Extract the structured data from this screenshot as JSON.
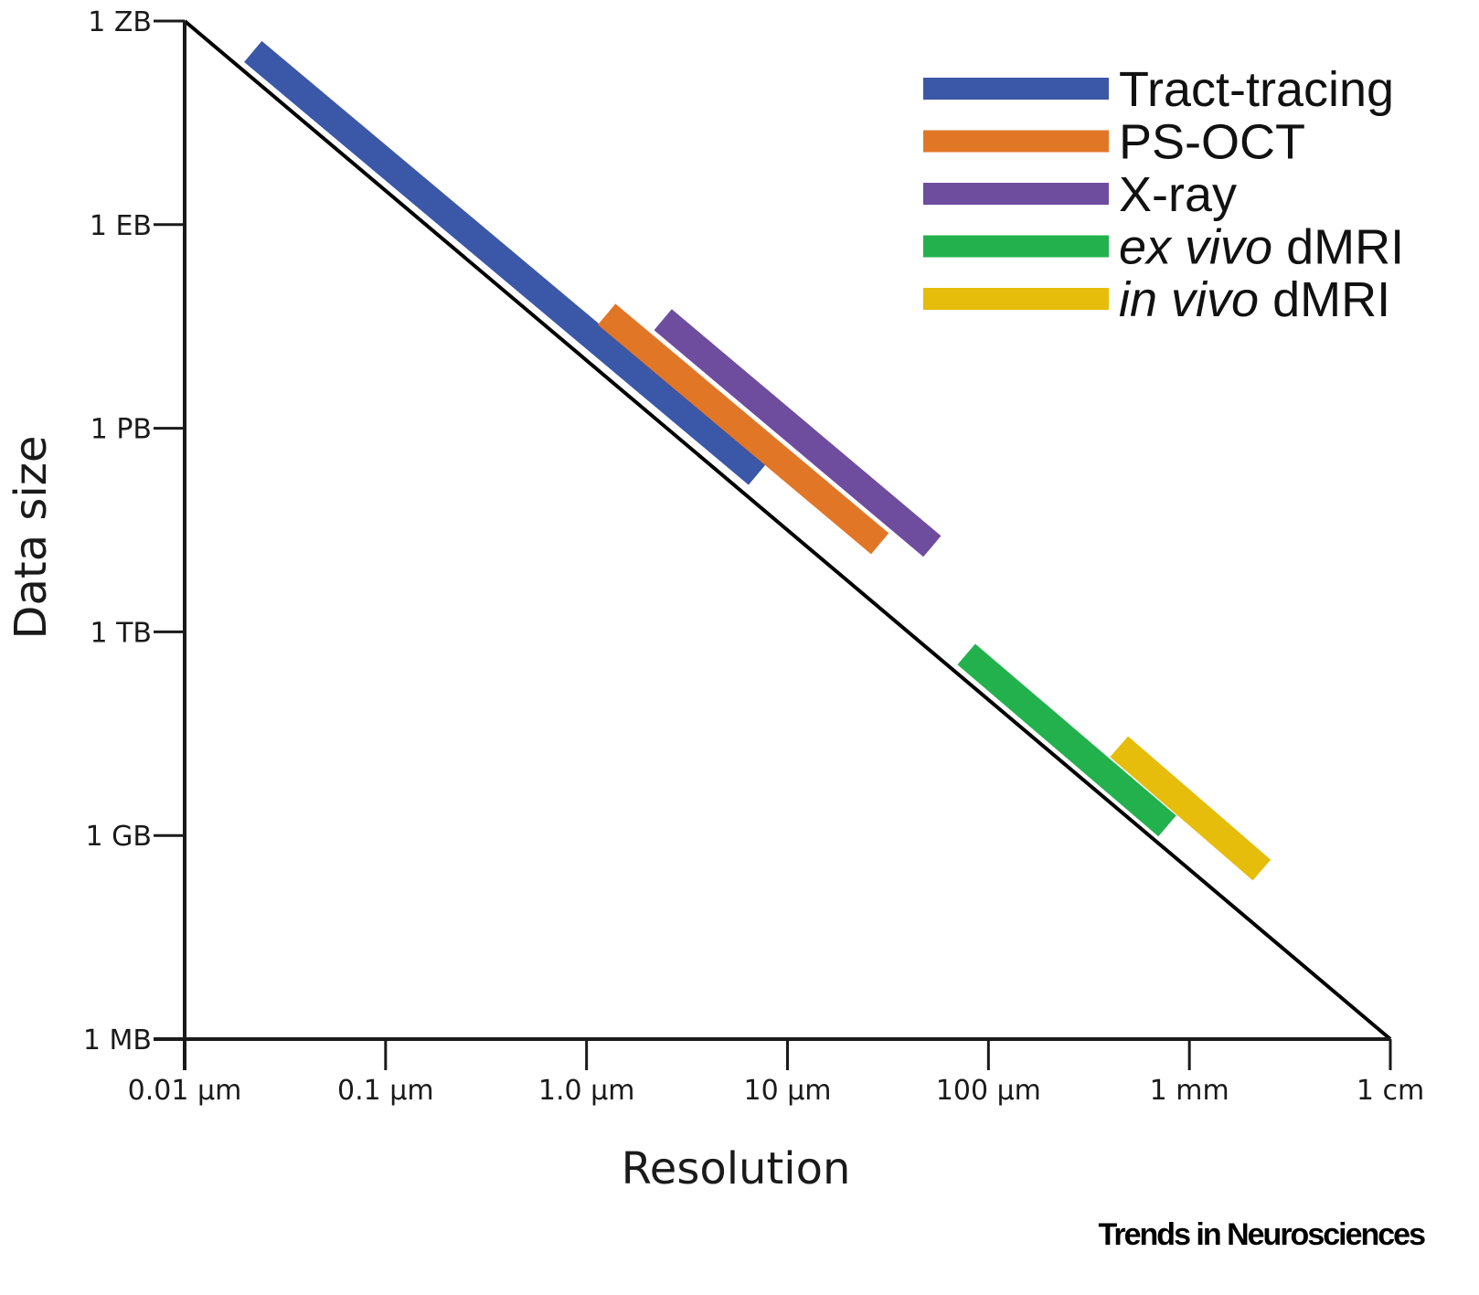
{
  "chart_data": {
    "type": "line",
    "title": "",
    "xlabel": "Resolution",
    "ylabel": "Data size",
    "x_scale": "log10 (µm)",
    "y_scale": "log10 (bytes)",
    "xlim": [
      -2,
      4
    ],
    "ylim": [
      6,
      21
    ],
    "x_ticks": [
      {
        "value": -2,
        "label": "0.01 µm"
      },
      {
        "value": -1,
        "label": "0.1 µm"
      },
      {
        "value": 0,
        "label": "1.0 µm"
      },
      {
        "value": 1,
        "label": "10 µm"
      },
      {
        "value": 2,
        "label": "100 µm"
      },
      {
        "value": 3,
        "label": "1 mm"
      },
      {
        "value": 4,
        "label": "1 cm"
      }
    ],
    "y_ticks": [
      {
        "value": 6,
        "label": "1 MB"
      },
      {
        "value": 9,
        "label": "1 GB"
      },
      {
        "value": 12,
        "label": "1 TB"
      },
      {
        "value": 15,
        "label": "1 PB"
      },
      {
        "value": 18,
        "label": "1 EB"
      },
      {
        "value": 21,
        "label": "1 ZB"
      }
    ],
    "reference_line": {
      "x": [
        -2,
        4
      ],
      "y": [
        21,
        6
      ]
    },
    "series": [
      {
        "name": "Tract-tracing",
        "color": "#3b57a7",
        "x": [
          -1.66,
          0.85
        ],
        "y": [
          20.55,
          14.32
        ]
      },
      {
        "name": "PS-OCT",
        "color": "#e27627",
        "x": [
          0.1,
          1.46
        ],
        "y": [
          16.68,
          13.3
        ]
      },
      {
        "name": "X-ray",
        "color": "#6e4c9e",
        "x": [
          0.38,
          1.72
        ],
        "y": [
          16.6,
          13.26
        ]
      },
      {
        "name": "ex vivo dMRI",
        "color": "#23b14d",
        "x": [
          1.89,
          2.89
        ],
        "y": [
          11.67,
          9.14
        ]
      },
      {
        "name": "in vivo dMRI",
        "color": "#e5bd0a",
        "x": [
          2.65,
          3.36
        ],
        "y": [
          10.31,
          8.49
        ]
      }
    ],
    "legend": {
      "position": "top-right",
      "entries": [
        {
          "italic": "",
          "plain": "Tract-tracing"
        },
        {
          "italic": "",
          "plain": "PS-OCT"
        },
        {
          "italic": "",
          "plain": "X-ray"
        },
        {
          "italic": "ex vivo",
          "plain": " dMRI"
        },
        {
          "italic": "in vivo",
          "plain": " dMRI"
        }
      ]
    },
    "grid": false
  },
  "credit": "Trends in Neurosciences"
}
